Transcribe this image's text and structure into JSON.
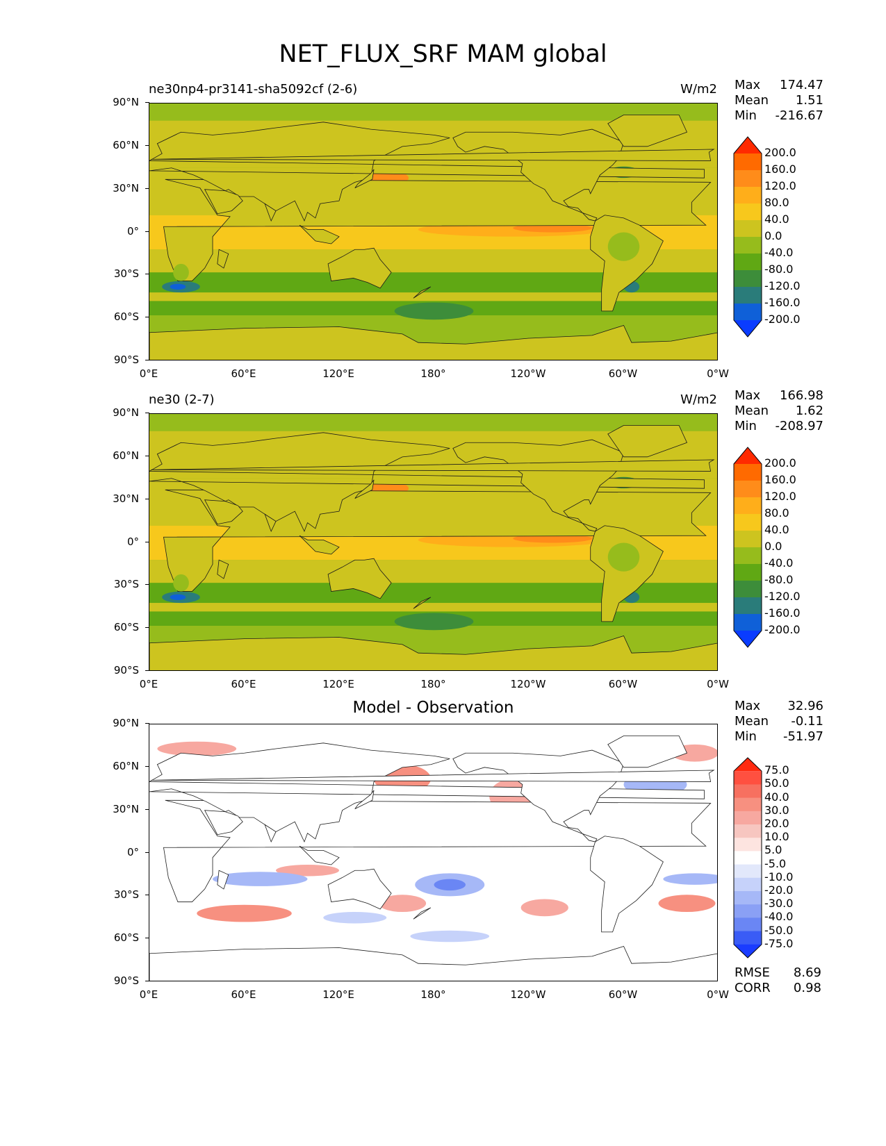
{
  "figure_title": "NET_FLUX_SRF MAM global",
  "panels": [
    {
      "title_left": "ne30np4-pr3141-sha5092cf (2-6)",
      "title_right": "W/m2",
      "stats": {
        "max_label": "Max",
        "max": "174.47",
        "mean_label": "Mean",
        "mean": "1.51",
        "min_label": "Min",
        "min": "-216.67"
      },
      "colorbar_labels": [
        "200.0",
        "160.0",
        "120.0",
        "80.0",
        "40.0",
        "0.0",
        "-40.0",
        "-80.0",
        "-120.0",
        "-160.0",
        "-200.0"
      ],
      "colorbar_colors": [
        "#ff2a00",
        "#ff6a00",
        "#ff8c1a",
        "#ffae1a",
        "#f7c81c",
        "#cdc41f",
        "#96bc1c",
        "#60a814",
        "#3d8d3a",
        "#2a7c7a",
        "#0f60d8",
        "#0a3cff"
      ]
    },
    {
      "title_left": "ne30 (2-7)",
      "title_right": "W/m2",
      "stats": {
        "max_label": "Max",
        "max": "166.98",
        "mean_label": "Mean",
        "mean": "1.62",
        "min_label": "Min",
        "min": "-208.97"
      },
      "colorbar_labels": [
        "200.0",
        "160.0",
        "120.0",
        "80.0",
        "40.0",
        "0.0",
        "-40.0",
        "-80.0",
        "-120.0",
        "-160.0",
        "-200.0"
      ],
      "colorbar_colors": [
        "#ff2a00",
        "#ff6a00",
        "#ff8c1a",
        "#ffae1a",
        "#f7c81c",
        "#cdc41f",
        "#96bc1c",
        "#60a814",
        "#3d8d3a",
        "#2a7c7a",
        "#0f60d8",
        "#0a3cff"
      ]
    },
    {
      "title_center": "Model - Observation",
      "stats": {
        "max_label": "Max",
        "max": "32.96",
        "mean_label": "Mean",
        "mean": "-0.11",
        "min_label": "Min",
        "min": "-51.97"
      },
      "colorbar_labels": [
        "75.0",
        "50.0",
        "40.0",
        "30.0",
        "20.0",
        "10.0",
        "5.0",
        "-5.0",
        "-10.0",
        "-20.0",
        "-30.0",
        "-40.0",
        "-50.0",
        "-75.0"
      ],
      "colorbar_colors": [
        "#ff2a10",
        "#ff5040",
        "#f77060",
        "#f79080",
        "#f7a8a0",
        "#f7c6c0",
        "#fde4e0",
        "#ffffff",
        "#e2e8fb",
        "#c6d2fa",
        "#a6b8f7",
        "#8aa0f5",
        "#6a86f4",
        "#3a5cf6",
        "#1a3cff"
      ],
      "rmse_label": "RMSE",
      "rmse": "8.69",
      "corr_label": "CORR",
      "corr": "0.98"
    }
  ],
  "lat_ticks": [
    "90°N",
    "60°N",
    "30°N",
    "0°",
    "30°S",
    "60°S",
    "90°S"
  ],
  "lon_ticks": [
    "0°E",
    "60°E",
    "120°E",
    "180°",
    "120°W",
    "60°W",
    "0°W"
  ]
}
